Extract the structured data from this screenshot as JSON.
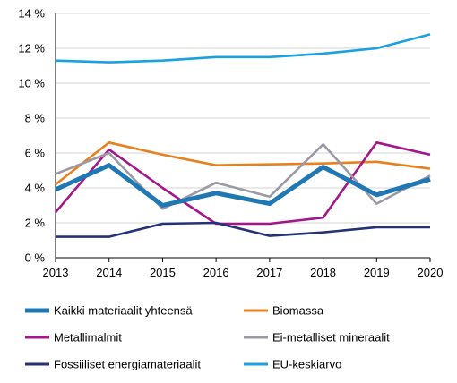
{
  "chart_data": {
    "type": "line",
    "title": "",
    "xlabel": "",
    "ylabel": "",
    "x": [
      "2013",
      "2014",
      "2015",
      "2016",
      "2017",
      "2018",
      "2019",
      "2020"
    ],
    "ylim": [
      0,
      14
    ],
    "yticks": [
      0,
      2,
      4,
      6,
      8,
      10,
      12,
      14
    ],
    "ytick_labels": [
      "0 %",
      "2 %",
      "4 %",
      "6 %",
      "8 %",
      "10 %",
      "12 %",
      "14 %"
    ],
    "grid": "horizontal",
    "legend_position": "bottom",
    "series": [
      {
        "name": "Kaikki materiaalit yhteensä",
        "color": "#1f77b4",
        "emphasis": true,
        "values": [
          3.9,
          5.3,
          3.0,
          3.7,
          3.1,
          5.2,
          3.6,
          4.5
        ]
      },
      {
        "name": "Biomassa",
        "color": "#e8801e",
        "emphasis": false,
        "values": [
          4.2,
          6.6,
          5.9,
          5.3,
          5.35,
          5.4,
          5.5,
          5.1
        ]
      },
      {
        "name": "Metallimalmit",
        "color": "#a3178a",
        "emphasis": false,
        "values": [
          2.6,
          6.2,
          4.0,
          1.95,
          1.95,
          2.3,
          6.6,
          5.9
        ]
      },
      {
        "name": "Ei-metalliset mineraalit",
        "color": "#9a9aa6",
        "emphasis": false,
        "values": [
          4.8,
          6.0,
          2.8,
          4.3,
          3.5,
          6.5,
          3.1,
          4.7
        ]
      },
      {
        "name": "Fossiiliset energiamateriaalit",
        "color": "#263277",
        "emphasis": false,
        "values": [
          1.2,
          1.2,
          1.95,
          2.0,
          1.25,
          1.45,
          1.75,
          1.75
        ]
      },
      {
        "name": "EU-keskiarvo",
        "color": "#1aa1df",
        "emphasis": false,
        "values": [
          11.3,
          11.2,
          11.3,
          11.5,
          11.5,
          11.7,
          12.0,
          12.8
        ]
      }
    ]
  }
}
